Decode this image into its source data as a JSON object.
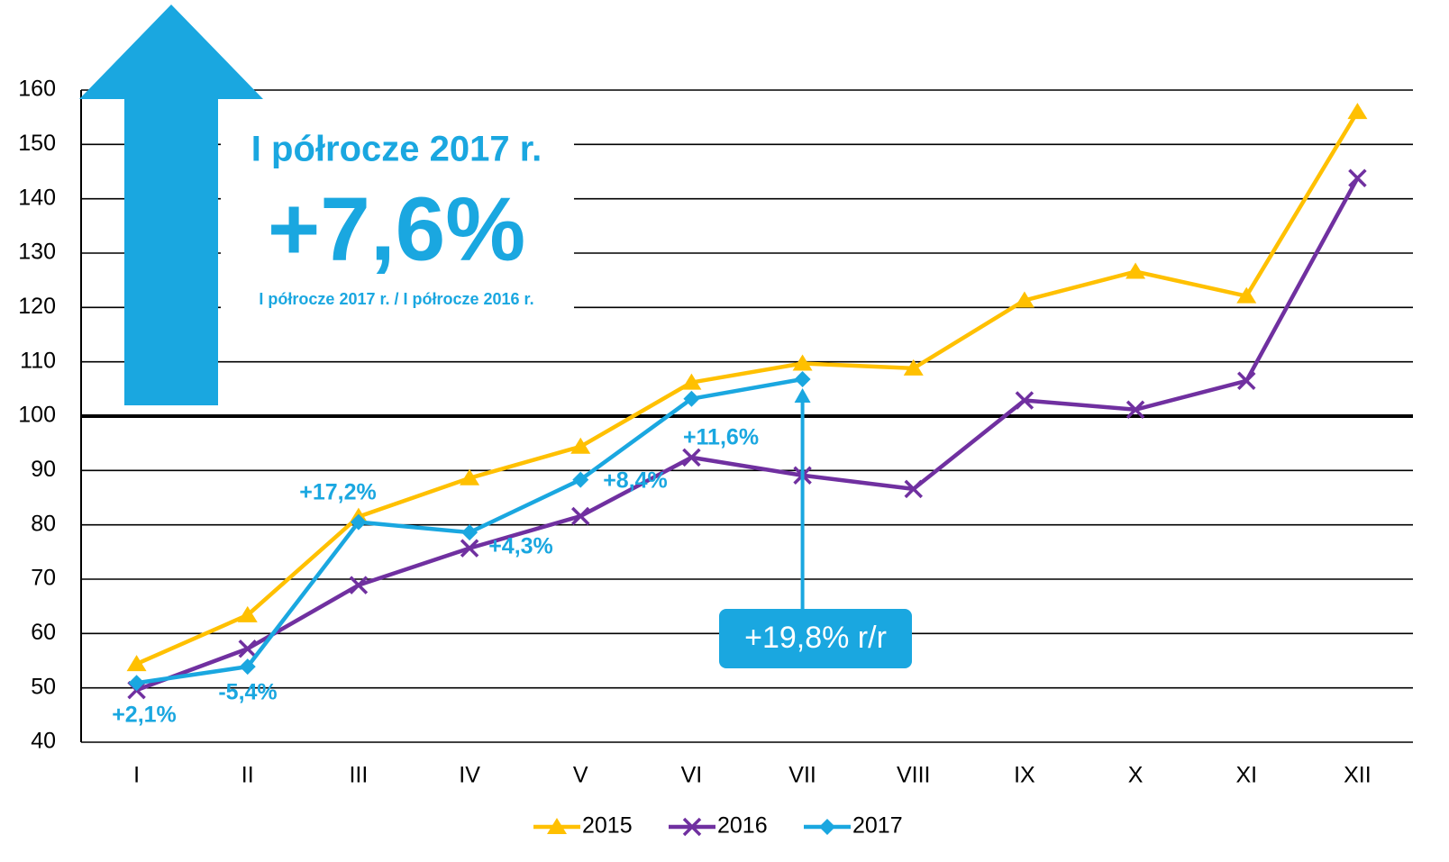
{
  "chart_data": {
    "type": "line",
    "headline": "I półrocze 2017 r.",
    "headline_value": "+7,6%",
    "headline_note": "I półrocze 2017 r. / I półrocze 2016 r.",
    "callout": "+19,8% r/r",
    "annotations": [
      "+2,1%",
      "-5,4%",
      "+17,2%",
      "+4,3%",
      "+8,4%",
      "+11,6%"
    ],
    "categories": [
      "I",
      "II",
      "III",
      "IV",
      "V",
      "VI",
      "VII",
      "VIII",
      "IX",
      "X",
      "XI",
      "XII"
    ],
    "series": [
      {
        "name": "2015",
        "color": "#ffc000",
        "marker": "triangle",
        "values": [
          54.4,
          63.4,
          81.5,
          88.6,
          94.4,
          106.2,
          109.7,
          108.8,
          121.3,
          126.6,
          122.1,
          156
        ]
      },
      {
        "name": "2016",
        "color": "#7030a0",
        "marker": "x",
        "values": [
          49.6,
          57.2,
          68.9,
          75.7,
          81.6,
          92.4,
          89.1,
          86.6,
          102.9,
          101.2,
          106.5,
          143.8
        ]
      },
      {
        "name": "2017",
        "color": "#1aa7e0",
        "marker": "diamond",
        "values": [
          50.9,
          53.9,
          80.5,
          78.6,
          88.3,
          103.2,
          106.8,
          null,
          null,
          null,
          null,
          null
        ]
      }
    ],
    "ylim": [
      40,
      160
    ],
    "yticks": [
      40,
      50,
      60,
      70,
      80,
      90,
      100,
      110,
      120,
      130,
      140,
      150,
      160
    ],
    "grid": true,
    "reference_line": 100,
    "legend": "bottom"
  }
}
